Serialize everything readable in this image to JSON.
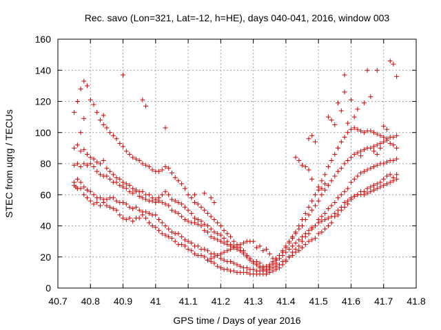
{
  "chart_data": {
    "type": "scatter",
    "title": "Rec. savo (Lon=321, Lat=-12, h=HE), days 040-041, 2016, window 003",
    "xlabel": "GPS time / Days of year 2016",
    "ylabel": "STEC from uqrg / TECUs",
    "xlim": [
      40.7,
      41.8
    ],
    "ylim": [
      0,
      160
    ],
    "xticks": [
      "40.7",
      "40.8",
      "40.9",
      "41",
      "41.1",
      "41.2",
      "41.3",
      "41.4",
      "41.5",
      "41.6",
      "41.7",
      "41.8"
    ],
    "yticks": [
      "0",
      "20",
      "40",
      "60",
      "80",
      "100",
      "120",
      "140",
      "160"
    ],
    "grid": true,
    "marker": "+",
    "color": "#cc0000",
    "series": [
      {
        "x": [
          40.75,
          40.755,
          40.76,
          40.77,
          40.78,
          40.79,
          40.8,
          40.81,
          40.82,
          40.83,
          40.84,
          40.85,
          40.86,
          40.87,
          40.88,
          40.89,
          40.9,
          40.91,
          40.92,
          40.93,
          40.94,
          40.95,
          40.96,
          40.97,
          40.98,
          40.99,
          41.0,
          41.01,
          41.02,
          41.03,
          41.04,
          41.05,
          41.06,
          41.07,
          41.08,
          41.09,
          41.1,
          41.11,
          41.12,
          41.13,
          41.14,
          41.15,
          41.16,
          41.17,
          41.18,
          41.19,
          41.2,
          41.21,
          41.22,
          41.23,
          41.24,
          41.25,
          41.26,
          41.27,
          41.28,
          41.29,
          41.3,
          41.31,
          41.32,
          41.33,
          41.34,
          41.35,
          41.36,
          41.37,
          41.38,
          41.39,
          41.4,
          41.41,
          41.42,
          41.43,
          41.44,
          41.45,
          41.46,
          41.47,
          41.48,
          41.49,
          41.5,
          41.51,
          41.52,
          41.53,
          41.54,
          41.55,
          41.56,
          41.57,
          41.58,
          41.59,
          41.6,
          41.61,
          41.62,
          41.63,
          41.64,
          41.65,
          41.66,
          41.67,
          41.68,
          41.69,
          41.7,
          41.71,
          41.72,
          41.73,
          41.74,
          40.75,
          40.76,
          40.77,
          40.78,
          40.79,
          40.8,
          40.81,
          40.82,
          40.83,
          40.84,
          40.85,
          40.86,
          40.87,
          40.88,
          40.89,
          40.9,
          40.91,
          40.92,
          40.93,
          40.94,
          40.95,
          40.96,
          40.97,
          40.98,
          40.99,
          41.0,
          41.01,
          41.02,
          41.03,
          41.04,
          41.05,
          41.06,
          41.07,
          41.08,
          41.09,
          41.1,
          41.11,
          41.12,
          41.13,
          41.14,
          41.15,
          41.16,
          41.17,
          41.18,
          41.19,
          41.2,
          41.21,
          41.22,
          41.23,
          41.24,
          41.25,
          41.26,
          41.27,
          41.28,
          41.29,
          41.3,
          41.31,
          41.32,
          41.33,
          41.34,
          41.35,
          41.36,
          41.37,
          41.38,
          41.39,
          41.4,
          41.41,
          41.42,
          41.43,
          41.44,
          41.45,
          41.46,
          41.47,
          41.48,
          41.49,
          41.5,
          41.51,
          41.52,
          41.53,
          41.54,
          41.55,
          41.56,
          41.57,
          41.58,
          41.59,
          41.6,
          41.61,
          41.62,
          41.63,
          41.64,
          41.65,
          41.66,
          41.67,
          41.68,
          41.69,
          41.7,
          41.71,
          41.72,
          41.73,
          41.74,
          40.75,
          40.76,
          40.77,
          40.78,
          40.79,
          40.8,
          40.81,
          40.82,
          40.83,
          40.84,
          40.85,
          40.86,
          40.87,
          40.88,
          40.89,
          40.9,
          40.91,
          40.92,
          40.93,
          40.94,
          40.95,
          40.96,
          40.97,
          40.98,
          40.99,
          41.0,
          41.01,
          41.02,
          41.03,
          41.04,
          41.05,
          41.06,
          41.07,
          41.08,
          41.09,
          41.1,
          41.11,
          41.12,
          41.13,
          41.14,
          41.15,
          41.16,
          41.17,
          41.18,
          41.19,
          41.2,
          41.21,
          41.22,
          41.23,
          41.24,
          41.25,
          41.26,
          41.27,
          41.28,
          41.29,
          41.3,
          41.31,
          41.32,
          41.33,
          41.34,
          41.35,
          41.36,
          41.37,
          41.38,
          41.39,
          41.4,
          41.41,
          41.42,
          41.43,
          41.44,
          41.45,
          41.46,
          41.47,
          41.48,
          41.49,
          41.5,
          41.51,
          41.52,
          41.53,
          41.54,
          41.55,
          41.56,
          41.57,
          41.58,
          41.59,
          41.6,
          41.61,
          41.62,
          41.63,
          41.64,
          41.65,
          41.66,
          41.67,
          41.68,
          41.69,
          41.7,
          41.71,
          41.72,
          41.73,
          41.74,
          40.75,
          40.76,
          40.77,
          40.78,
          40.79,
          40.8,
          40.81,
          40.82,
          40.83,
          40.84,
          40.85,
          40.86,
          40.87,
          40.88,
          40.89,
          40.9,
          40.91,
          40.92,
          40.93,
          40.94,
          40.95,
          40.96,
          40.97,
          40.98,
          40.99,
          41.0,
          41.01,
          41.02,
          41.03,
          41.04,
          41.05,
          41.06,
          41.07,
          41.08,
          41.09,
          41.1,
          41.11,
          41.12,
          41.13,
          41.14,
          41.15,
          41.16,
          41.17,
          41.18,
          41.19,
          41.2,
          41.21,
          41.22,
          41.23,
          41.24,
          41.25,
          41.26,
          41.27,
          41.28,
          41.29,
          41.3,
          41.31,
          41.32,
          41.33,
          41.34,
          41.35,
          41.36,
          41.37,
          41.38,
          41.39,
          41.4,
          41.41,
          41.42,
          41.43,
          41.44,
          41.45,
          41.46,
          41.47,
          41.48,
          41.49,
          41.5,
          41.51,
          41.52,
          41.53,
          41.54,
          41.55,
          41.56,
          41.57,
          41.58,
          41.59,
          41.6,
          41.61,
          41.62,
          41.63,
          41.64,
          41.65,
          41.66,
          41.67,
          41.68,
          41.69,
          41.7,
          41.71,
          41.72,
          41.73,
          41.74,
          40.75,
          40.76,
          40.77,
          40.78,
          40.79,
          40.8,
          40.81,
          40.82,
          40.83,
          40.84,
          40.85,
          40.86,
          40.87,
          40.88,
          40.89,
          40.9,
          40.91,
          40.92,
          40.93,
          40.94,
          40.95,
          40.96,
          40.97,
          40.98,
          40.99,
          41.0,
          41.01,
          41.02,
          41.03,
          41.04,
          41.05,
          41.06,
          41.07,
          41.08,
          41.09,
          41.1,
          41.11,
          41.12,
          41.13,
          41.14,
          41.15,
          41.16,
          41.17,
          41.18,
          41.19,
          41.2,
          41.21,
          41.22,
          41.23,
          41.24,
          41.25,
          41.26,
          41.27,
          41.28,
          41.29,
          41.3,
          41.31,
          41.32,
          41.33,
          41.34,
          41.35,
          41.36,
          41.37,
          41.38,
          41.39,
          41.4,
          41.41,
          41.42,
          41.43,
          41.44,
          41.45,
          41.46,
          41.47,
          41.48,
          41.49,
          41.5,
          41.51,
          41.52,
          41.53,
          41.54,
          41.55,
          41.56,
          41.57,
          41.58,
          41.59,
          41.6,
          41.61,
          41.62,
          41.63,
          41.64,
          41.65,
          41.66,
          41.67,
          41.68,
          41.69,
          41.7,
          41.71,
          41.72,
          41.73,
          41.74,
          40.77,
          40.78,
          40.84,
          40.9,
          40.96,
          40.97,
          41.03,
          41.12,
          41.15,
          41.17,
          41.18,
          41.72,
          41.73,
          41.74,
          41.65,
          41.68,
          41.58,
          41.53,
          41.54,
          41.55,
          41.6,
          41.62,
          41.64,
          41.66,
          41.58,
          41.48,
          41.47,
          41.49,
          41.43,
          41.44,
          41.45,
          41.46,
          41.47,
          41.48,
          41.52,
          41.51,
          41.5,
          41.56,
          41.57,
          41.59,
          41.61,
          41.7,
          41.71,
          41.68,
          41.69,
          41.67,
          41.63,
          41.36,
          41.37,
          41.38,
          41.35,
          41.34,
          41.33,
          41.32,
          41.31,
          41.3,
          41.29,
          41.28,
          41.27,
          41.26,
          41.25,
          41.24,
          41.23,
          41.22,
          41.21,
          41.2,
          41.19,
          41.18,
          41.17,
          41.16
        ],
        "y": [
          66,
          65,
          64,
          64,
          60,
          58,
          56,
          54,
          55,
          53,
          55,
          53,
          52,
          51,
          50,
          47,
          45,
          44,
          45,
          43,
          45,
          45,
          47,
          45,
          42,
          40,
          39,
          37,
          35,
          34,
          33,
          32,
          30,
          28,
          28,
          27,
          25,
          24,
          22,
          21,
          21,
          20,
          18,
          17,
          16,
          14,
          13,
          12,
          12,
          11,
          11,
          10,
          10,
          10,
          10,
          9,
          9,
          9,
          9,
          9,
          9,
          10,
          11,
          12,
          13,
          15,
          17,
          20,
          23,
          25,
          27,
          30,
          33,
          35,
          38,
          40,
          42,
          43,
          44,
          45,
          46,
          48,
          50,
          52,
          55,
          56,
          58,
          59,
          60,
          60,
          60,
          61,
          62,
          63,
          64,
          65,
          66,
          67,
          68,
          69,
          70,
          68,
          70,
          68,
          65,
          63,
          62,
          60,
          58,
          58,
          57,
          57,
          58,
          58,
          56,
          55,
          55,
          54,
          52,
          51,
          52,
          50,
          49,
          49,
          48,
          47,
          47,
          44,
          42,
          40,
          38,
          36,
          35,
          35,
          33,
          31,
          30,
          29,
          27,
          27,
          25,
          25,
          24,
          22,
          22,
          21,
          19,
          18,
          17,
          17,
          16,
          15,
          14,
          13,
          13,
          12,
          12,
          11,
          11,
          11,
          11,
          12,
          13,
          14,
          15,
          17,
          18,
          20,
          21,
          23,
          24,
          26,
          28,
          30,
          31,
          32,
          35,
          36,
          38,
          40,
          42,
          46,
          47,
          50,
          52,
          54,
          57,
          59,
          60,
          62,
          62,
          64,
          65,
          66,
          67,
          68,
          70,
          72,
          73,
          71,
          73,
          79,
          80,
          78,
          80,
          79,
          80,
          78,
          75,
          73,
          72,
          72,
          70,
          68,
          68,
          66,
          65,
          64,
          62,
          61,
          62,
          59,
          58,
          57,
          56,
          56,
          55,
          56,
          55,
          54,
          53,
          50,
          49,
          48,
          46,
          44,
          43,
          42,
          42,
          41,
          40,
          37,
          36,
          33,
          32,
          31,
          30,
          29,
          28,
          27,
          26,
          25,
          24,
          22,
          20,
          18,
          16,
          15,
          14,
          13,
          12,
          14,
          16,
          18,
          19,
          21,
          23,
          25,
          27,
          29,
          31,
          33,
          35,
          37,
          39,
          40,
          44,
          46,
          48,
          51,
          53,
          55,
          58,
          60,
          62,
          64,
          68,
          70,
          72,
          74,
          75,
          76,
          77,
          78,
          79,
          80,
          80,
          81,
          82,
          82,
          83,
          90,
          92,
          88,
          89,
          86,
          84,
          83,
          81,
          80,
          82,
          77,
          75,
          73,
          71,
          70,
          68,
          67,
          66,
          64,
          63,
          62,
          62,
          60,
          60,
          58,
          57,
          58,
          60,
          62,
          60,
          57,
          56,
          55,
          54,
          52,
          50,
          48,
          45,
          44,
          43,
          41,
          40,
          38,
          36,
          35,
          34,
          32,
          30,
          28,
          27,
          26,
          24,
          23,
          21,
          19,
          17,
          17,
          16,
          14,
          14,
          15,
          17,
          19,
          21,
          23,
          26,
          29,
          32,
          35,
          38,
          40,
          44,
          47,
          50,
          53,
          56,
          60,
          63,
          66,
          69,
          72,
          75,
          77,
          80,
          82,
          84,
          86,
          87,
          88,
          89,
          90,
          90,
          91,
          92,
          93,
          94,
          96,
          97,
          97,
          98,
          113,
          120,
          128,
          133,
          130,
          121,
          118,
          113,
          108,
          105,
          103,
          100,
          98,
          96,
          93,
          91,
          88,
          86,
          84,
          83,
          82,
          80,
          79,
          78,
          76,
          75,
          75,
          76,
          78,
          77,
          74,
          71,
          69,
          67,
          64,
          60,
          58,
          55,
          54,
          52,
          50,
          48,
          46,
          44,
          42,
          40,
          37,
          35,
          33,
          30,
          28,
          26,
          24,
          21,
          19,
          17,
          15,
          13,
          12,
          11,
          13,
          15,
          18,
          21,
          24,
          27,
          30,
          33,
          36,
          40,
          44,
          48,
          52,
          56,
          60,
          65,
          69,
          73,
          78,
          82,
          86,
          90,
          94,
          97,
          100,
          102,
          103,
          102,
          101,
          100,
          101,
          101,
          100,
          99,
          98,
          97,
          95,
          93,
          92,
          90,
          100,
          109,
          111,
          137,
          121,
          117,
          103,
          60,
          61,
          58,
          55,
          146,
          144,
          136,
          140,
          140,
          137,
          110,
          108,
          105,
          121,
          115,
          119,
          123,
          126,
          98,
          96,
          94,
          84,
          82,
          79,
          78,
          76,
          70,
          67,
          64,
          63,
          119,
          114,
          106,
          110,
          104,
          102,
          86,
          90,
          88,
          85,
          19,
          16,
          15,
          22,
          25,
          24,
          27,
          26,
          30,
          30,
          30,
          29,
          28,
          27,
          26,
          25,
          24,
          23,
          22,
          21,
          20,
          19,
          18
        ]
      }
    ]
  }
}
